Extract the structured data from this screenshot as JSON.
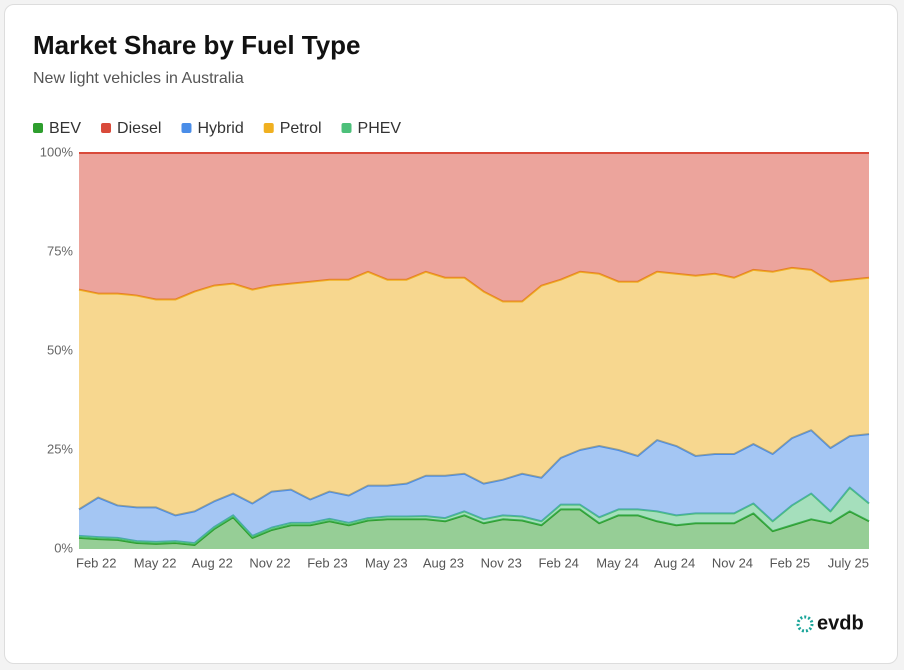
{
  "chart_data": {
    "type": "stacked_area",
    "title": "Market Share by Fuel Type",
    "subtitle": "New light vehicles in Australia",
    "brand": "evdb",
    "categories": [
      "Feb 22",
      null,
      null,
      "May 22",
      null,
      null,
      "Aug 22",
      null,
      null,
      "Nov 22",
      null,
      null,
      "Feb 23",
      null,
      null,
      "May 23",
      null,
      null,
      "Aug 23",
      null,
      null,
      "Nov 23",
      null,
      null,
      "Feb 24",
      null,
      null,
      "May 24",
      null,
      null,
      "Aug 24",
      null,
      null,
      "Nov 24",
      null,
      null,
      "Feb 25",
      null,
      null,
      null,
      null,
      "July 25"
    ],
    "ylim": [
      0,
      100
    ],
    "yticks": [
      {
        "value": 0,
        "label": "0%"
      },
      {
        "value": 25,
        "label": "25%"
      },
      {
        "value": 50,
        "label": "50%"
      },
      {
        "value": 75,
        "label": "75%"
      },
      {
        "value": 100,
        "label": "100%"
      }
    ],
    "series": [
      {
        "name": "BEV",
        "color": "#2e9e2e",
        "values": [
          2.8,
          2.5,
          2.3,
          1.5,
          1.3,
          1.5,
          1.0,
          5,
          8,
          2.8,
          4.8,
          6,
          6,
          7,
          6,
          7.2,
          7.5,
          7.5,
          7.5,
          7,
          8.5,
          6.5,
          7.5,
          7.2,
          6,
          10,
          10,
          6.5,
          8.5,
          8.5,
          7,
          6,
          6.5,
          6.5,
          6.5,
          9,
          4.5,
          6,
          7.5,
          6.5,
          9.5,
          7
        ]
      },
      {
        "name": "PHEV",
        "color": "#4cc07a",
        "values": [
          0.5,
          0.5,
          0.5,
          0.5,
          0.5,
          0.5,
          0.5,
          0.5,
          0.5,
          0.5,
          0.6,
          0.6,
          0.6,
          0.6,
          0.6,
          0.6,
          0.7,
          0.7,
          0.8,
          0.8,
          1,
          1,
          1,
          1,
          1,
          1.2,
          1.2,
          1.5,
          1.5,
          1.5,
          2.5,
          2.5,
          2.5,
          2.5,
          2.5,
          2.5,
          2.5,
          5,
          6.5,
          3,
          6,
          4.5
        ]
      },
      {
        "name": "Hybrid",
        "color": "#4a8de8",
        "values": [
          6.7,
          10,
          8.2,
          8.5,
          8.7,
          6.5,
          8,
          6.5,
          5.5,
          8.2,
          9.1,
          8.4,
          5.9,
          6.9,
          6.9,
          8.2,
          7.8,
          8.3,
          10.2,
          10.7,
          9.5,
          9,
          9,
          10.8,
          11,
          11.8,
          13.8,
          18,
          15,
          13.5,
          18,
          17.5,
          14.5,
          15,
          15,
          15,
          17,
          17,
          16,
          16,
          13,
          17.5
        ]
      },
      {
        "name": "Petrol",
        "color": "#f0b020",
        "values": [
          55.5,
          51.5,
          53.5,
          53.5,
          52.5,
          54.5,
          55.5,
          54.5,
          53,
          54,
          52,
          52,
          55,
          53.5,
          54.5,
          54,
          52,
          51.5,
          51.5,
          50,
          49.5,
          48.5,
          45,
          43.5,
          48.5,
          45,
          45,
          43.5,
          42.5,
          44,
          42.5,
          43.5,
          45.5,
          45.5,
          44.5,
          44,
          46,
          43,
          40.5,
          42,
          39.5,
          39.5
        ]
      },
      {
        "name": "Diesel",
        "color": "#d94a3a",
        "values": [
          34.5,
          35.5,
          35.5,
          36,
          37,
          37,
          35,
          33.5,
          33,
          34.5,
          33.5,
          33,
          32.5,
          32,
          32,
          30,
          32,
          32,
          30,
          31.5,
          31.5,
          35,
          37.5,
          37.5,
          33.5,
          32,
          30,
          30.5,
          32.5,
          32.5,
          30,
          30.5,
          31,
          30.5,
          31.5,
          29.5,
          30,
          29,
          29.5,
          32.5,
          32,
          31.5
        ]
      }
    ]
  }
}
